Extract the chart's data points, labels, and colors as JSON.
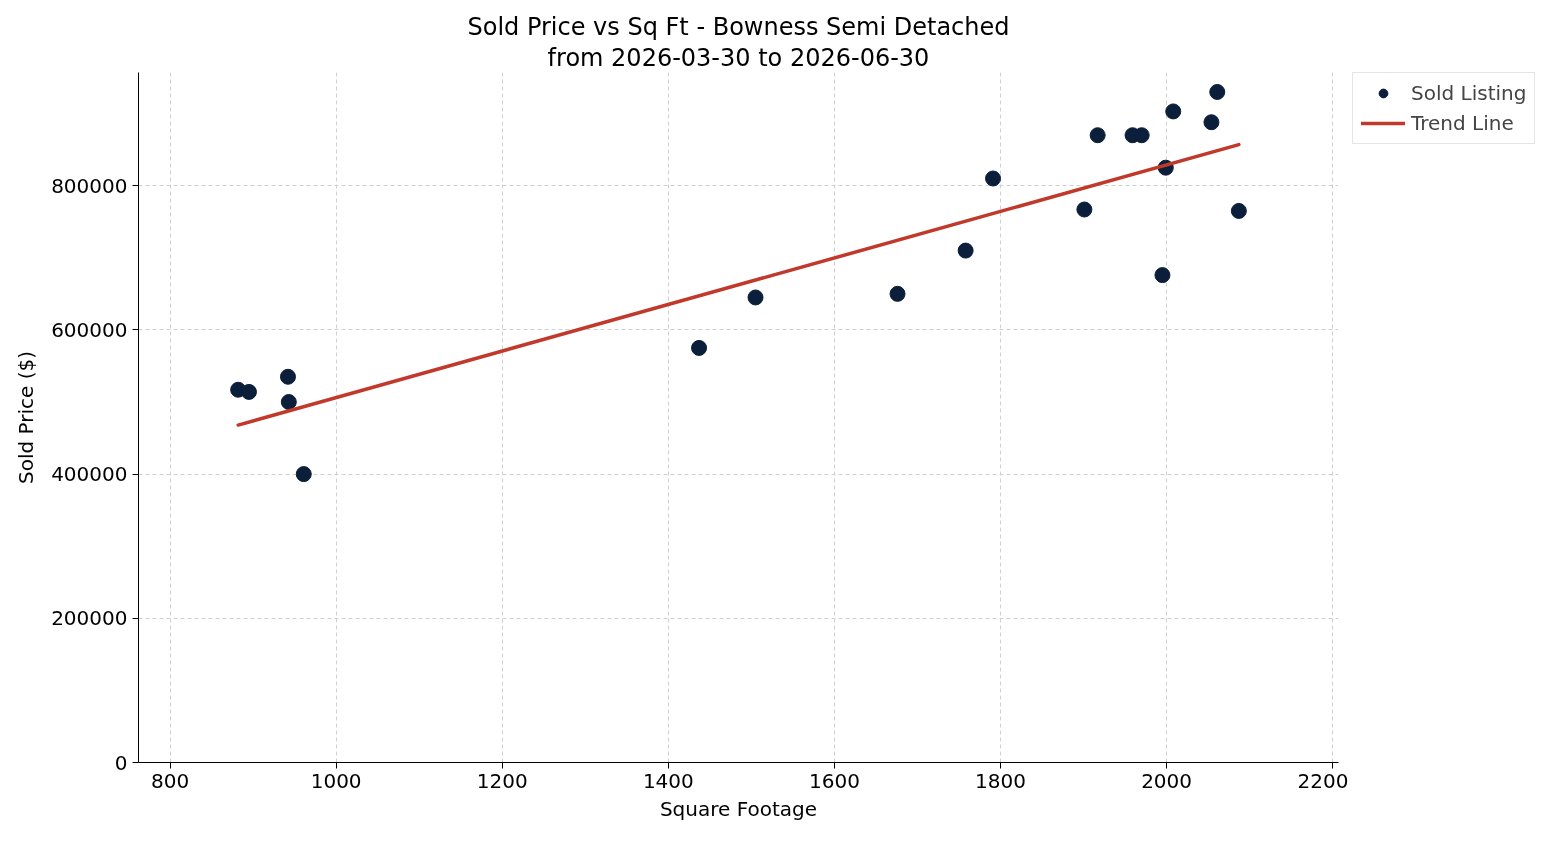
{
  "chart_data": {
    "type": "scatter",
    "title": "Sold Price vs Sq Ft - Bowness Semi Detached",
    "subtitle": "from 2026-03-30 to 2026-06-30",
    "xlabel": "Square Footage",
    "ylabel": "Sold Price ($)",
    "series": [
      {
        "name": "Sold Listing",
        "color": "#0b1f3a",
        "marker": "circle",
        "x": [
          882,
          895,
          942,
          943,
          961,
          1437,
          1505,
          1676,
          1758,
          1791,
          1901,
          1917,
          1959,
          1970,
          1995,
          1999,
          2087,
          2008,
          2061,
          2054
        ],
        "values": [
          517000,
          514000,
          535000,
          500000,
          400000,
          575000,
          645000,
          650000,
          710000,
          810000,
          767000,
          870000,
          870000,
          870000,
          676000,
          825000,
          765000,
          903000,
          930000,
          888000
        ]
      },
      {
        "name": "Trend Line",
        "type": "line",
        "marker": "none",
        "line_style": "solid",
        "color": "#c0392b",
        "x": [
          882,
          2087
        ],
        "values": [
          468000,
          857000
        ]
      }
    ],
    "xlim": [
      762,
      2207
    ],
    "ylim": [
      0,
      957000
    ],
    "xticks": [
      800,
      1000,
      1200,
      1400,
      1600,
      1800,
      2000,
      2200
    ],
    "yticks": [
      0,
      200000,
      400000,
      600000,
      800000
    ],
    "grid": true,
    "legend": "top right"
  }
}
